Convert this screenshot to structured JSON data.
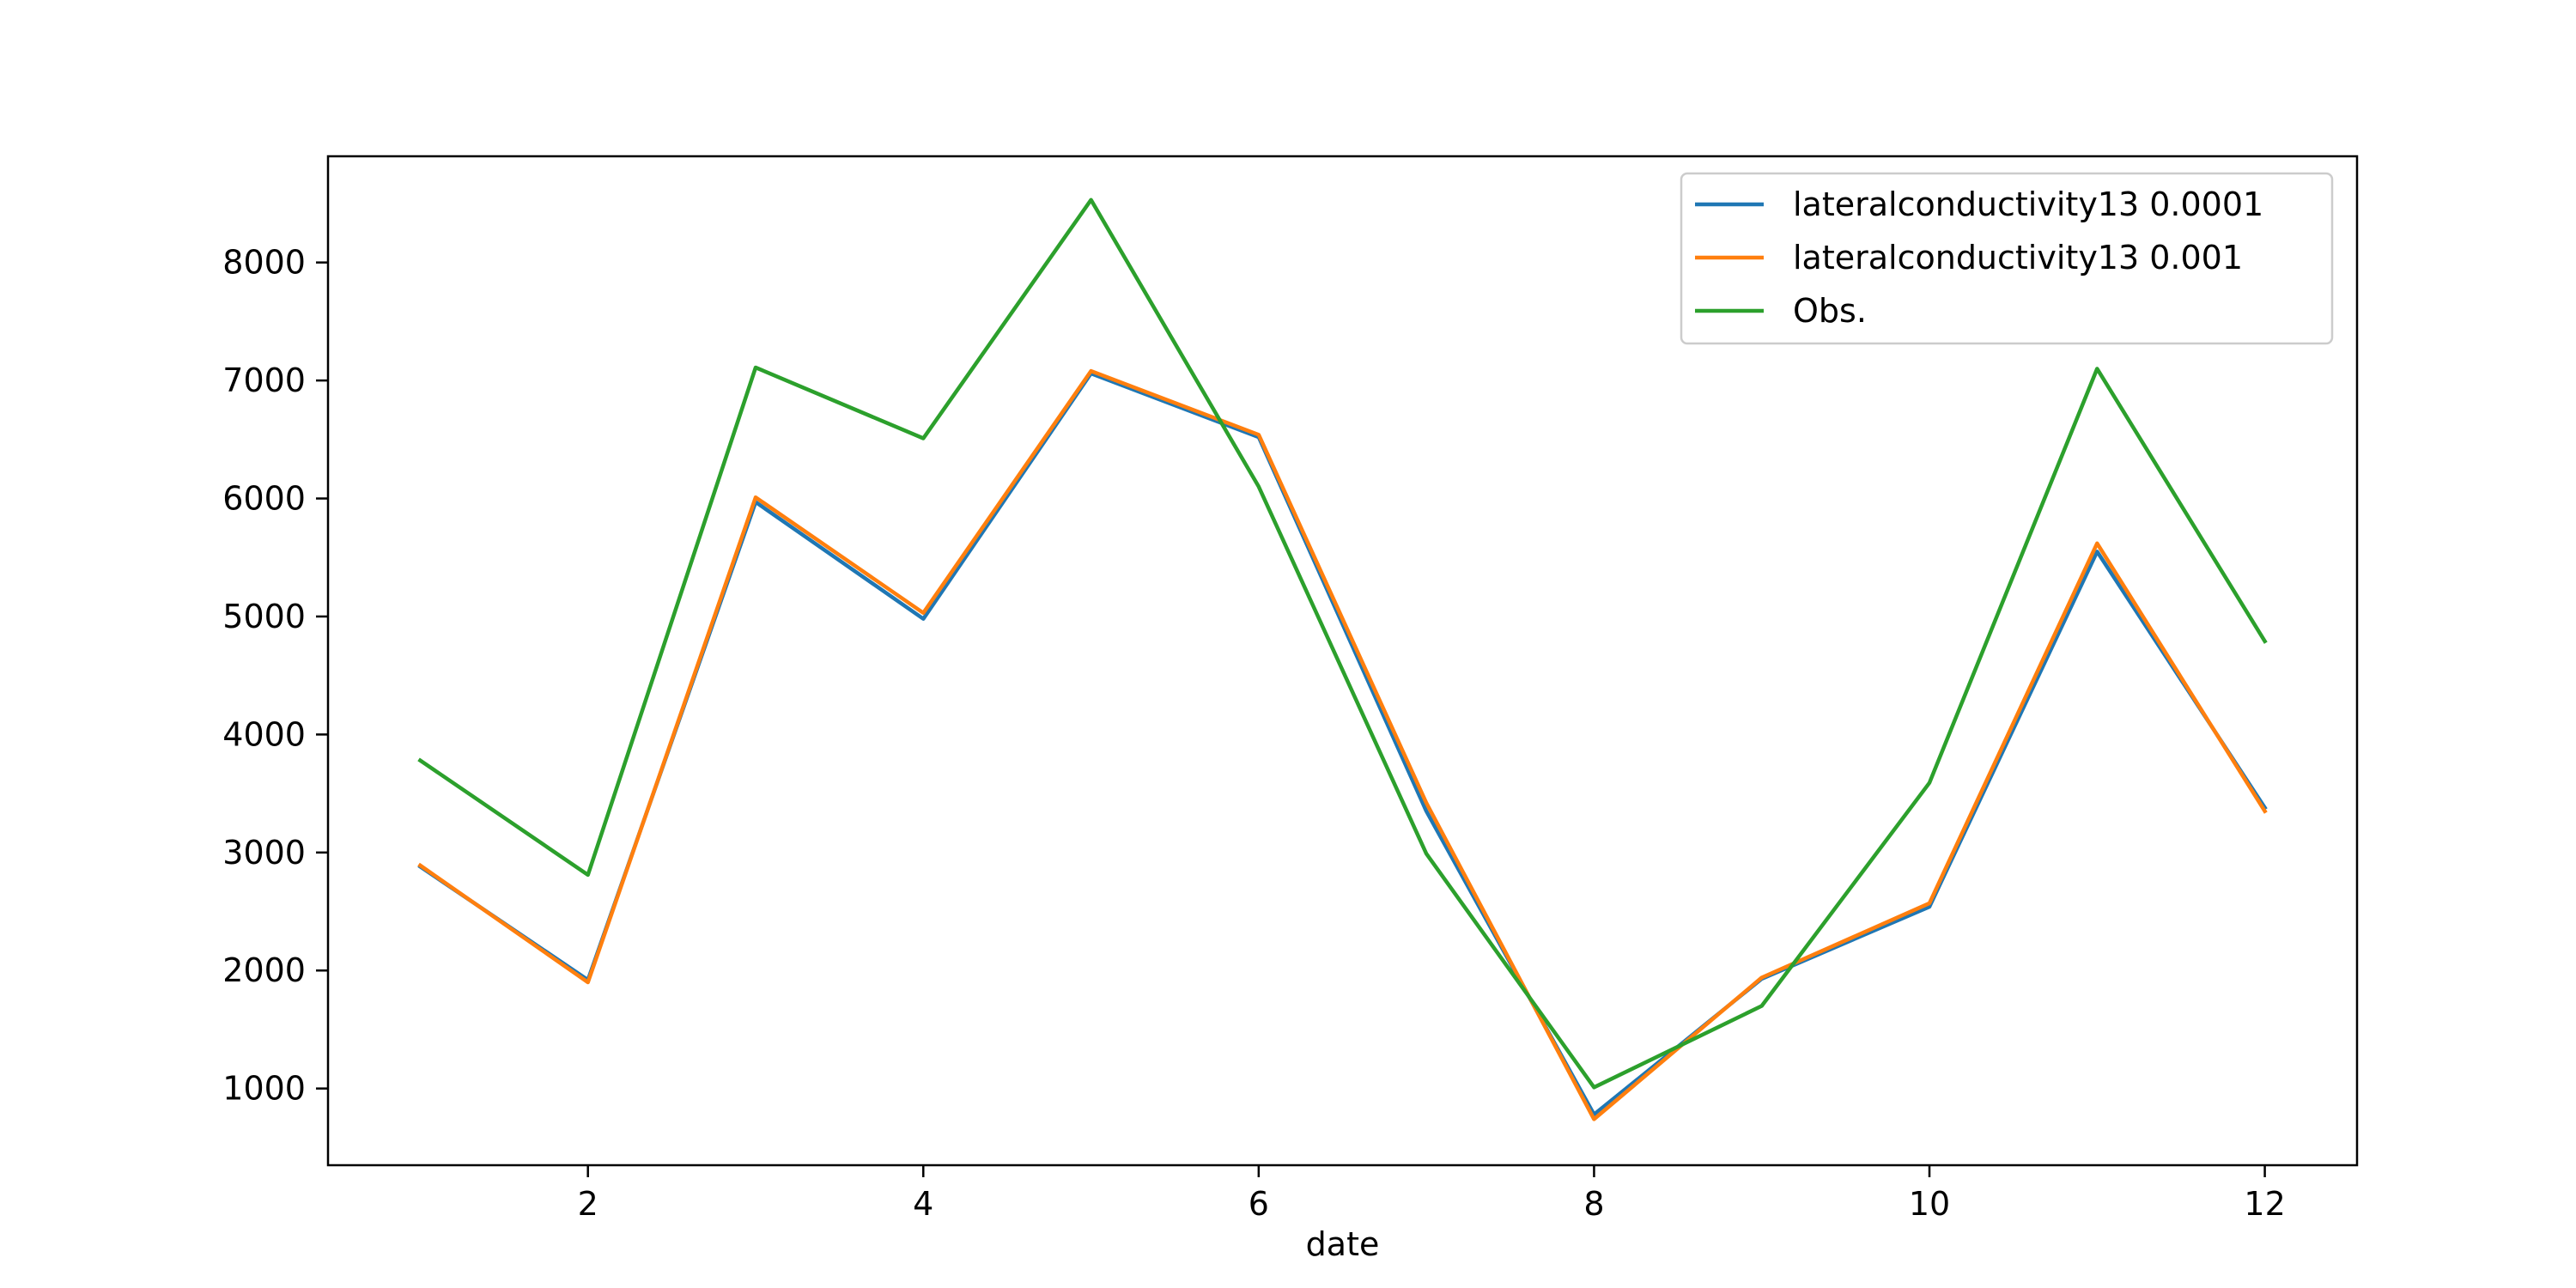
{
  "chart_data": {
    "type": "line",
    "title": "",
    "xlabel": "date",
    "ylabel": "",
    "xlim": [
      0.45,
      12.55
    ],
    "ylim": [
      350,
      8900
    ],
    "xticks": [
      2,
      4,
      6,
      8,
      10,
      12
    ],
    "yticks": [
      1000,
      2000,
      3000,
      4000,
      5000,
      6000,
      7000,
      8000
    ],
    "grid": false,
    "legend_position": "top-right",
    "x": [
      1,
      2,
      3,
      4,
      5,
      6,
      7,
      8,
      9,
      10,
      11,
      12
    ],
    "series": [
      {
        "name": "lateralconductivity13 0.0001",
        "color": "#1f77b4",
        "values": [
          2880,
          1920,
          5970,
          4980,
          7060,
          6520,
          3350,
          780,
          1930,
          2540,
          5550,
          3380
        ]
      },
      {
        "name": "lateralconductivity13 0.001",
        "color": "#ff7f0e",
        "values": [
          2890,
          1900,
          6010,
          5030,
          7080,
          6540,
          3420,
          740,
          1940,
          2570,
          5620,
          3350
        ]
      },
      {
        "name": "Obs.",
        "color": "#2ca02c",
        "values": [
          3780,
          2810,
          7110,
          6510,
          8530,
          6100,
          2990,
          1010,
          1700,
          3590,
          7100,
          4790
        ]
      }
    ]
  }
}
